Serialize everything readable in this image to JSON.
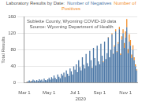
{
  "chart_data": {
    "type": "bar",
    "title": "Laboratory Results by Date:",
    "annotations": [
      "Sublette County, Wyoming COVID-19 data",
      "Source: Wyoming Department of Health"
    ],
    "x_label": "2020",
    "y_label": "Total Results",
    "categories": [
      "Mar 1",
      null,
      null,
      null,
      null,
      null,
      null,
      null,
      null,
      null,
      null,
      null,
      null,
      null,
      null,
      null,
      null,
      null,
      null,
      null,
      "May 1",
      null,
      null,
      null,
      null,
      null,
      null,
      null,
      null,
      null,
      null,
      null,
      null,
      null,
      null,
      null,
      null,
      null,
      null,
      null,
      null,
      "Jul 1",
      null,
      null,
      null,
      null,
      null,
      null,
      null,
      null,
      null,
      null,
      null,
      null,
      null,
      null,
      null,
      null,
      null,
      null,
      null,
      "Sep 1",
      null,
      null,
      null,
      null,
      null,
      null,
      null,
      null,
      null,
      null,
      null,
      null,
      null,
      null,
      null,
      null,
      null,
      null,
      null,
      null,
      "Nov 1",
      null,
      null,
      null,
      null,
      null,
      null,
      null,
      null,
      null
    ],
    "series": [
      {
        "name": "Number of Negatives",
        "color": "#4e79a7",
        "values": [
          0,
          1,
          2,
          4,
          6,
          3,
          5,
          8,
          6,
          4,
          7,
          5,
          9,
          6,
          8,
          4,
          10,
          7,
          6,
          9,
          12,
          8,
          14,
          10,
          18,
          12,
          9,
          20,
          15,
          11,
          22,
          18,
          25,
          14,
          30,
          22,
          17,
          35,
          28,
          20,
          40,
          32,
          45,
          26,
          55,
          38,
          30,
          62,
          44,
          35,
          70,
          48,
          40,
          78,
          55,
          36,
          85,
          60,
          42,
          90,
          52,
          45,
          95,
          66,
          50,
          100,
          58,
          72,
          110,
          62,
          80,
          118,
          70,
          88,
          125,
          75,
          95,
          130,
          68,
          105,
          120,
          85,
          110,
          135,
          72,
          100,
          90,
          60,
          80,
          55,
          40,
          30
        ]
      },
      {
        "name": "Number of Positives",
        "color": "#f28e2b",
        "values": [
          0,
          0,
          1,
          0,
          0,
          1,
          0,
          0,
          0,
          0,
          0,
          0,
          0,
          0,
          0,
          0,
          0,
          0,
          0,
          0,
          0,
          0,
          0,
          0,
          0,
          0,
          0,
          0,
          0,
          0,
          0,
          0,
          0,
          1,
          0,
          0,
          0,
          0,
          0,
          0,
          0,
          0,
          0,
          0,
          0,
          1,
          0,
          0,
          0,
          0,
          0,
          0,
          0,
          0,
          0,
          1,
          0,
          0,
          0,
          0,
          0,
          0,
          0,
          0,
          2,
          0,
          0,
          0,
          1,
          0,
          0,
          2,
          1,
          3,
          5,
          2,
          4,
          6,
          3,
          8,
          10,
          12,
          15,
          20,
          10,
          18,
          14,
          9,
          11,
          7,
          5,
          3
        ]
      }
    ],
    "stacked": true,
    "legend": "top",
    "grid": true,
    "ylim": [
      0,
      160
    ],
    "yticks": [
      0,
      40,
      80,
      120,
      160
    ]
  }
}
